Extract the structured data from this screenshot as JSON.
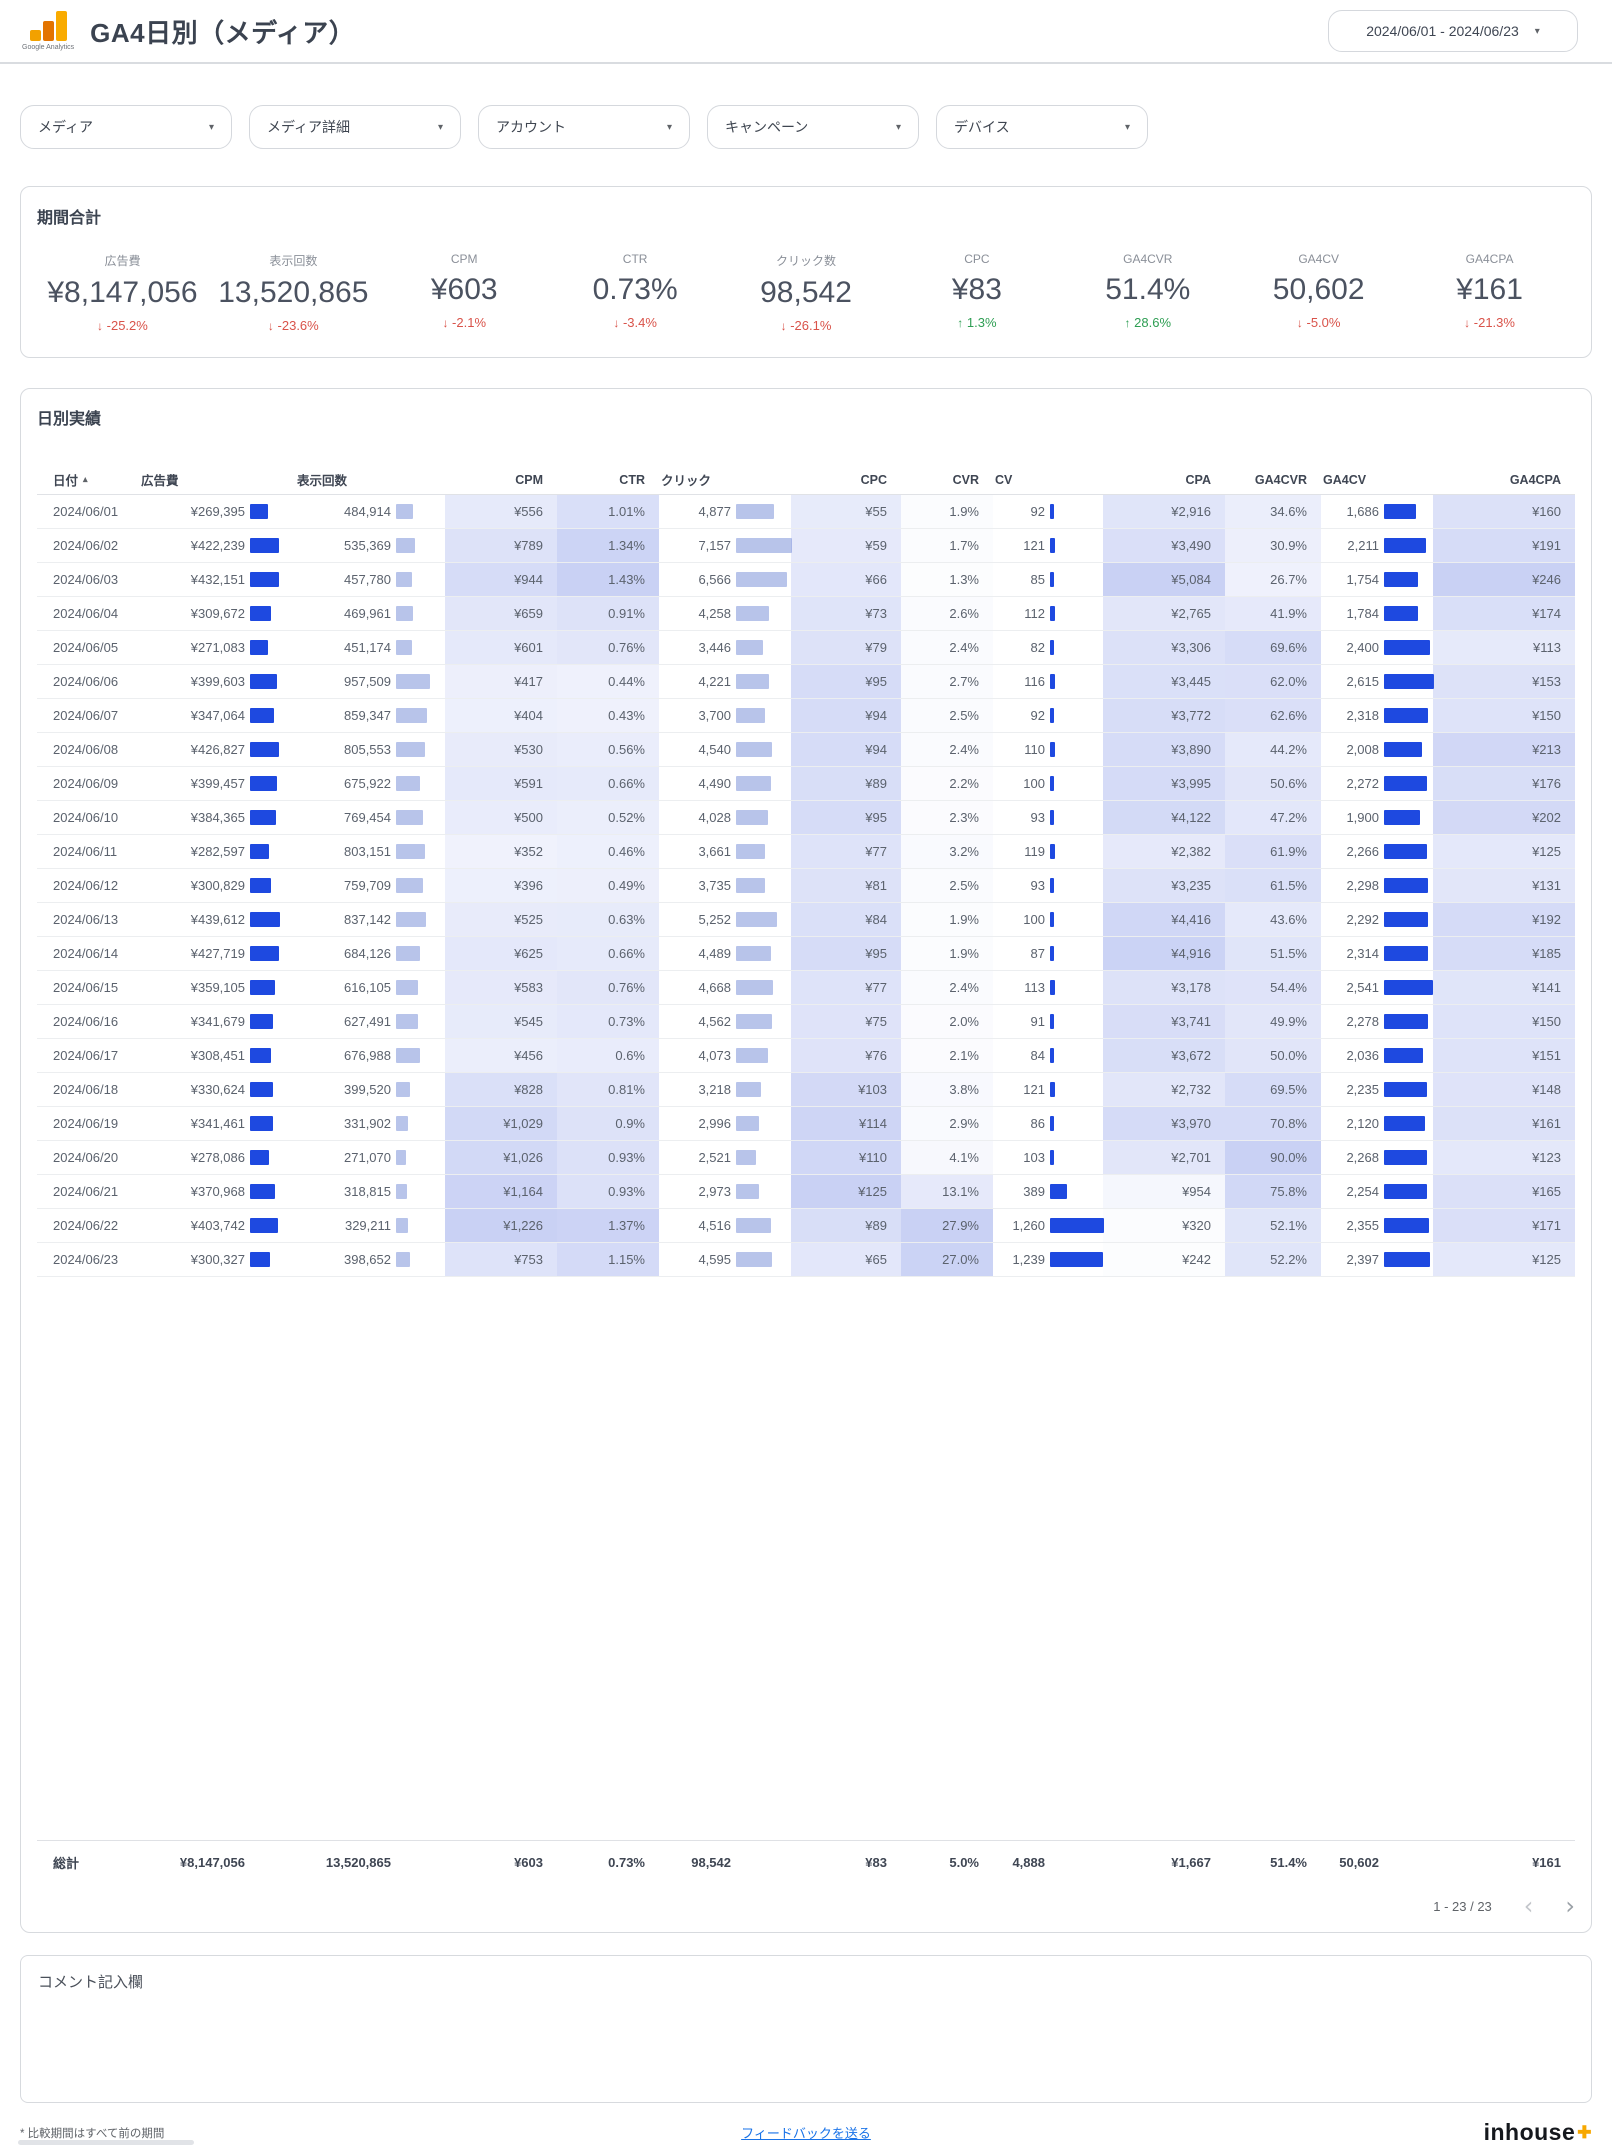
{
  "header": {
    "title": "GA4日別（メディア）",
    "logo_caption": "Google Analytics",
    "date_range": "2024/06/01 - 2024/06/23"
  },
  "filters": [
    "メディア",
    "メディア詳細",
    "アカウント",
    "キャンペーン",
    "デバイス"
  ],
  "summary": {
    "title": "期間合計",
    "kpis": [
      {
        "id": "spend",
        "label": "広告費",
        "value": "¥8,147,056",
        "delta": "-25.2%",
        "trend": "down"
      },
      {
        "id": "impressions",
        "label": "表示回数",
        "value": "13,520,865",
        "delta": "-23.6%",
        "trend": "down"
      },
      {
        "id": "cpm",
        "label": "CPM",
        "value": "¥603",
        "delta": "-2.1%",
        "trend": "down"
      },
      {
        "id": "ctr",
        "label": "CTR",
        "value": "0.73%",
        "delta": "-3.4%",
        "trend": "down"
      },
      {
        "id": "clicks",
        "label": "クリック数",
        "value": "98,542",
        "delta": "-26.1%",
        "trend": "down"
      },
      {
        "id": "cpc",
        "label": "CPC",
        "value": "¥83",
        "delta": "1.3%",
        "trend": "up"
      },
      {
        "id": "ga4cvr",
        "label": "GA4CVR",
        "value": "51.4%",
        "delta": "28.6%",
        "trend": "up"
      },
      {
        "id": "ga4cv",
        "label": "GA4CV",
        "value": "50,602",
        "delta": "-5.0%",
        "trend": "down"
      },
      {
        "id": "ga4cpa",
        "label": "GA4CPA",
        "value": "¥161",
        "delta": "-21.3%",
        "trend": "down"
      }
    ]
  },
  "table": {
    "title": "日別実績",
    "columns": [
      "日付",
      "広告費",
      "表示回数",
      "CPM",
      "CTR",
      "クリック",
      "CPC",
      "CVR",
      "CV",
      "CPA",
      "GA4CVR",
      "GA4CV",
      "GA4CPA"
    ],
    "rows": [
      [
        "2024/06/01",
        "¥269,395",
        "484,914",
        "¥556",
        "1.01%",
        "4,877",
        "¥55",
        "1.9%",
        "92",
        "¥2,916",
        "34.6%",
        "1,686",
        "¥160"
      ],
      [
        "2024/06/02",
        "¥422,239",
        "535,369",
        "¥789",
        "1.34%",
        "7,157",
        "¥59",
        "1.7%",
        "121",
        "¥3,490",
        "30.9%",
        "2,211",
        "¥191"
      ],
      [
        "2024/06/03",
        "¥432,151",
        "457,780",
        "¥944",
        "1.43%",
        "6,566",
        "¥66",
        "1.3%",
        "85",
        "¥5,084",
        "26.7%",
        "1,754",
        "¥246"
      ],
      [
        "2024/06/04",
        "¥309,672",
        "469,961",
        "¥659",
        "0.91%",
        "4,258",
        "¥73",
        "2.6%",
        "112",
        "¥2,765",
        "41.9%",
        "1,784",
        "¥174"
      ],
      [
        "2024/06/05",
        "¥271,083",
        "451,174",
        "¥601",
        "0.76%",
        "3,446",
        "¥79",
        "2.4%",
        "82",
        "¥3,306",
        "69.6%",
        "2,400",
        "¥113"
      ],
      [
        "2024/06/06",
        "¥399,603",
        "957,509",
        "¥417",
        "0.44%",
        "4,221",
        "¥95",
        "2.7%",
        "116",
        "¥3,445",
        "62.0%",
        "2,615",
        "¥153"
      ],
      [
        "2024/06/07",
        "¥347,064",
        "859,347",
        "¥404",
        "0.43%",
        "3,700",
        "¥94",
        "2.5%",
        "92",
        "¥3,772",
        "62.6%",
        "2,318",
        "¥150"
      ],
      [
        "2024/06/08",
        "¥426,827",
        "805,553",
        "¥530",
        "0.56%",
        "4,540",
        "¥94",
        "2.4%",
        "110",
        "¥3,890",
        "44.2%",
        "2,008",
        "¥213"
      ],
      [
        "2024/06/09",
        "¥399,457",
        "675,922",
        "¥591",
        "0.66%",
        "4,490",
        "¥89",
        "2.2%",
        "100",
        "¥3,995",
        "50.6%",
        "2,272",
        "¥176"
      ],
      [
        "2024/06/10",
        "¥384,365",
        "769,454",
        "¥500",
        "0.52%",
        "4,028",
        "¥95",
        "2.3%",
        "93",
        "¥4,122",
        "47.2%",
        "1,900",
        "¥202"
      ],
      [
        "2024/06/11",
        "¥282,597",
        "803,151",
        "¥352",
        "0.46%",
        "3,661",
        "¥77",
        "3.2%",
        "119",
        "¥2,382",
        "61.9%",
        "2,266",
        "¥125"
      ],
      [
        "2024/06/12",
        "¥300,829",
        "759,709",
        "¥396",
        "0.49%",
        "3,735",
        "¥81",
        "2.5%",
        "93",
        "¥3,235",
        "61.5%",
        "2,298",
        "¥131"
      ],
      [
        "2024/06/13",
        "¥439,612",
        "837,142",
        "¥525",
        "0.63%",
        "5,252",
        "¥84",
        "1.9%",
        "100",
        "¥4,416",
        "43.6%",
        "2,292",
        "¥192"
      ],
      [
        "2024/06/14",
        "¥427,719",
        "684,126",
        "¥625",
        "0.66%",
        "4,489",
        "¥95",
        "1.9%",
        "87",
        "¥4,916",
        "51.5%",
        "2,314",
        "¥185"
      ],
      [
        "2024/06/15",
        "¥359,105",
        "616,105",
        "¥583",
        "0.76%",
        "4,668",
        "¥77",
        "2.4%",
        "113",
        "¥3,178",
        "54.4%",
        "2,541",
        "¥141"
      ],
      [
        "2024/06/16",
        "¥341,679",
        "627,491",
        "¥545",
        "0.73%",
        "4,562",
        "¥75",
        "2.0%",
        "91",
        "¥3,741",
        "49.9%",
        "2,278",
        "¥150"
      ],
      [
        "2024/06/17",
        "¥308,451",
        "676,988",
        "¥456",
        "0.6%",
        "4,073",
        "¥76",
        "2.1%",
        "84",
        "¥3,672",
        "50.0%",
        "2,036",
        "¥151"
      ],
      [
        "2024/06/18",
        "¥330,624",
        "399,520",
        "¥828",
        "0.81%",
        "3,218",
        "¥103",
        "3.8%",
        "121",
        "¥2,732",
        "69.5%",
        "2,235",
        "¥148"
      ],
      [
        "2024/06/19",
        "¥341,461",
        "331,902",
        "¥1,029",
        "0.9%",
        "2,996",
        "¥114",
        "2.9%",
        "86",
        "¥3,970",
        "70.8%",
        "2,120",
        "¥161"
      ],
      [
        "2024/06/20",
        "¥278,086",
        "271,070",
        "¥1,026",
        "0.93%",
        "2,521",
        "¥110",
        "4.1%",
        "103",
        "¥2,701",
        "90.0%",
        "2,268",
        "¥123"
      ],
      [
        "2024/06/21",
        "¥370,968",
        "318,815",
        "¥1,164",
        "0.93%",
        "2,973",
        "¥125",
        "13.1%",
        "389",
        "¥954",
        "75.8%",
        "2,254",
        "¥165"
      ],
      [
        "2024/06/22",
        "¥403,742",
        "329,211",
        "¥1,226",
        "1.37%",
        "4,516",
        "¥89",
        "27.9%",
        "1,260",
        "¥320",
        "52.1%",
        "2,355",
        "¥171"
      ],
      [
        "2024/06/23",
        "¥300,327",
        "398,652",
        "¥753",
        "1.15%",
        "4,595",
        "¥65",
        "27.0%",
        "1,239",
        "¥242",
        "52.2%",
        "2,397",
        "¥125"
      ]
    ],
    "total": [
      "総計",
      "¥8,147,056",
      "13,520,865",
      "¥603",
      "0.73%",
      "98,542",
      "¥83",
      "5.0%",
      "4,888",
      "¥1,667",
      "51.4%",
      "50,602",
      "¥161"
    ],
    "pagination": "1 - 23 / 23"
  },
  "comment": {
    "label": "コメント記入欄"
  },
  "footer": {
    "note": "* 比較期間はすべて前の期間",
    "feedback": "フィードバックを送る",
    "brand": "inhouse"
  },
  "colors": {
    "bar_dark": "#1e49e0",
    "bar_light": "#b8c4ea",
    "heat_rgb": "76,102,220",
    "positive": "#2e9e53",
    "negative": "#d9534a",
    "brand_plus": "#f7a800"
  }
}
